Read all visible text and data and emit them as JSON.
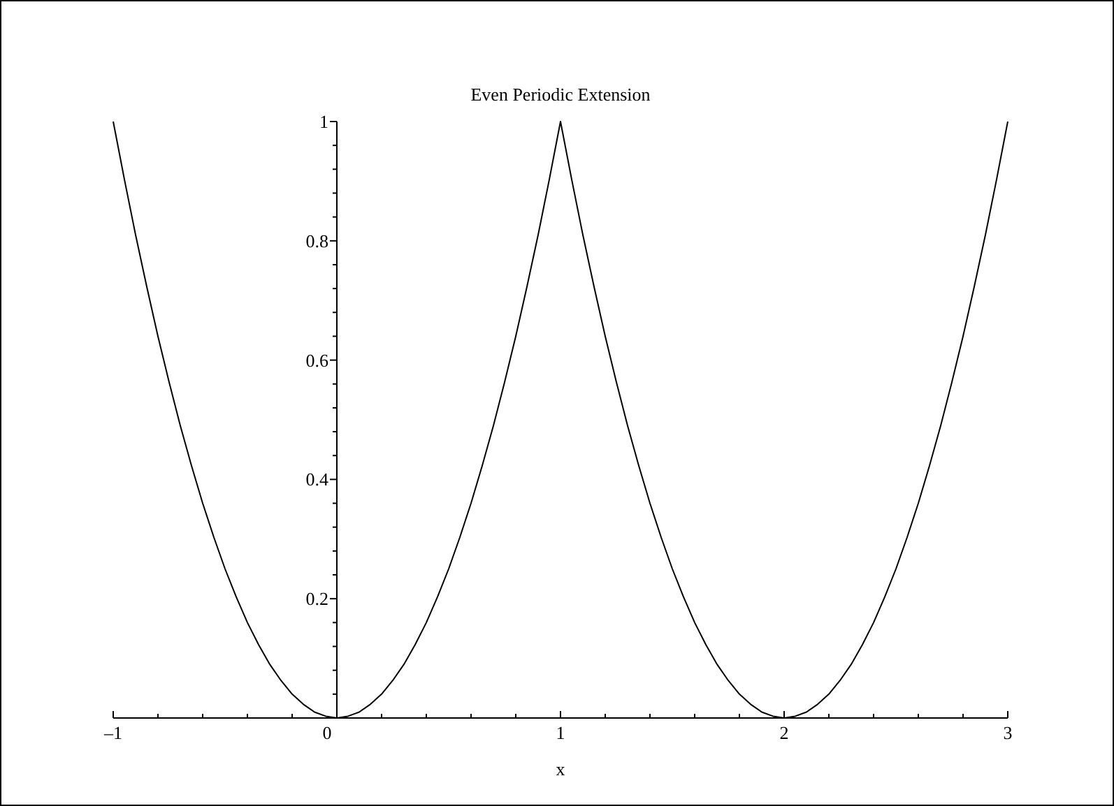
{
  "chart_data": {
    "type": "line",
    "title": "Even Periodic Extension",
    "xlabel": "x",
    "x": [
      -1,
      -0.95,
      -0.9,
      -0.85,
      -0.8,
      -0.75,
      -0.7,
      -0.65,
      -0.6,
      -0.55,
      -0.5,
      -0.45,
      -0.4,
      -0.35,
      -0.3,
      -0.25,
      -0.2,
      -0.15,
      -0.1,
      -0.05,
      0,
      0.05,
      0.1,
      0.15,
      0.2,
      0.25,
      0.3,
      0.35,
      0.4,
      0.45,
      0.5,
      0.55,
      0.6,
      0.65,
      0.7,
      0.75,
      0.8,
      0.85,
      0.9,
      0.95,
      1,
      1.05,
      1.1,
      1.15,
      1.2,
      1.25,
      1.3,
      1.35,
      1.4,
      1.45,
      1.5,
      1.55,
      1.6,
      1.65,
      1.7,
      1.75,
      1.8,
      1.85,
      1.9,
      1.95,
      2,
      2.05,
      2.1,
      2.15,
      2.2,
      2.25,
      2.3,
      2.35,
      2.4,
      2.45,
      2.5,
      2.55,
      2.6,
      2.65,
      2.7,
      2.75,
      2.8,
      2.85,
      2.9,
      2.95,
      3
    ],
    "series": [
      {
        "color": "#000000",
        "values": [
          1,
          0.903,
          0.81,
          0.723,
          0.64,
          0.563,
          0.49,
          0.423,
          0.36,
          0.303,
          0.25,
          0.203,
          0.16,
          0.123,
          0.09,
          0.063,
          0.04,
          0.023,
          0.01,
          0.003,
          0,
          0.003,
          0.01,
          0.023,
          0.04,
          0.063,
          0.09,
          0.123,
          0.16,
          0.203,
          0.25,
          0.303,
          0.36,
          0.423,
          0.49,
          0.563,
          0.64,
          0.723,
          0.81,
          0.903,
          1,
          0.903,
          0.81,
          0.723,
          0.64,
          0.563,
          0.49,
          0.423,
          0.36,
          0.303,
          0.25,
          0.203,
          0.16,
          0.123,
          0.09,
          0.063,
          0.04,
          0.023,
          0.01,
          0.003,
          0,
          0.003,
          0.01,
          0.023,
          0.04,
          0.063,
          0.09,
          0.123,
          0.16,
          0.203,
          0.25,
          0.303,
          0.36,
          0.423,
          0.49,
          0.563,
          0.64,
          0.723,
          0.81,
          0.903,
          1
        ]
      }
    ],
    "xlim": [
      -1,
      3
    ],
    "ylim": [
      0,
      1
    ],
    "xticks": [
      {
        "value": -1,
        "label": "–1"
      },
      {
        "value": -0.8,
        "label": null
      },
      {
        "value": -0.6,
        "label": null
      },
      {
        "value": -0.4,
        "label": null
      },
      {
        "value": -0.2,
        "label": null
      },
      0,
      {
        "value": 0.2,
        "label": null
      },
      {
        "value": 0.4,
        "label": null
      },
      {
        "value": 0.6,
        "label": null
      },
      {
        "value": 0.8,
        "label": null
      },
      1,
      {
        "value": 1.2,
        "label": null
      },
      {
        "value": 1.4,
        "label": null
      },
      {
        "value": 1.6,
        "label": null
      },
      {
        "value": 1.8,
        "label": null
      },
      2,
      {
        "value": 2.2,
        "label": null
      },
      {
        "value": 2.4,
        "label": null
      },
      {
        "value": 2.6,
        "label": null
      },
      {
        "value": 2.8,
        "label": null
      },
      3
    ],
    "yticks": [
      {
        "value": 0.04,
        "label": null
      },
      {
        "value": 0.08,
        "label": null
      },
      {
        "value": 0.12,
        "label": null
      },
      {
        "value": 0.16,
        "label": null
      },
      0.2,
      {
        "value": 0.24,
        "label": null
      },
      {
        "value": 0.28,
        "label": null
      },
      {
        "value": 0.32,
        "label": null
      },
      {
        "value": 0.36,
        "label": null
      },
      0.4,
      {
        "value": 0.44,
        "label": null
      },
      {
        "value": 0.48,
        "label": null
      },
      {
        "value": 0.52,
        "label": null
      },
      {
        "value": 0.56,
        "label": null
      },
      0.6,
      {
        "value": 0.64,
        "label": null
      },
      {
        "value": 0.68,
        "label": null
      },
      {
        "value": 0.72,
        "label": null
      },
      {
        "value": 0.76,
        "label": null
      },
      0.8,
      {
        "value": 0.84,
        "label": null
      },
      {
        "value": 0.88,
        "label": null
      },
      {
        "value": 0.92,
        "label": null
      },
      {
        "value": 0.96,
        "label": null
      },
      1
    ],
    "grid": false,
    "line_style": "solid",
    "marker": "none"
  }
}
